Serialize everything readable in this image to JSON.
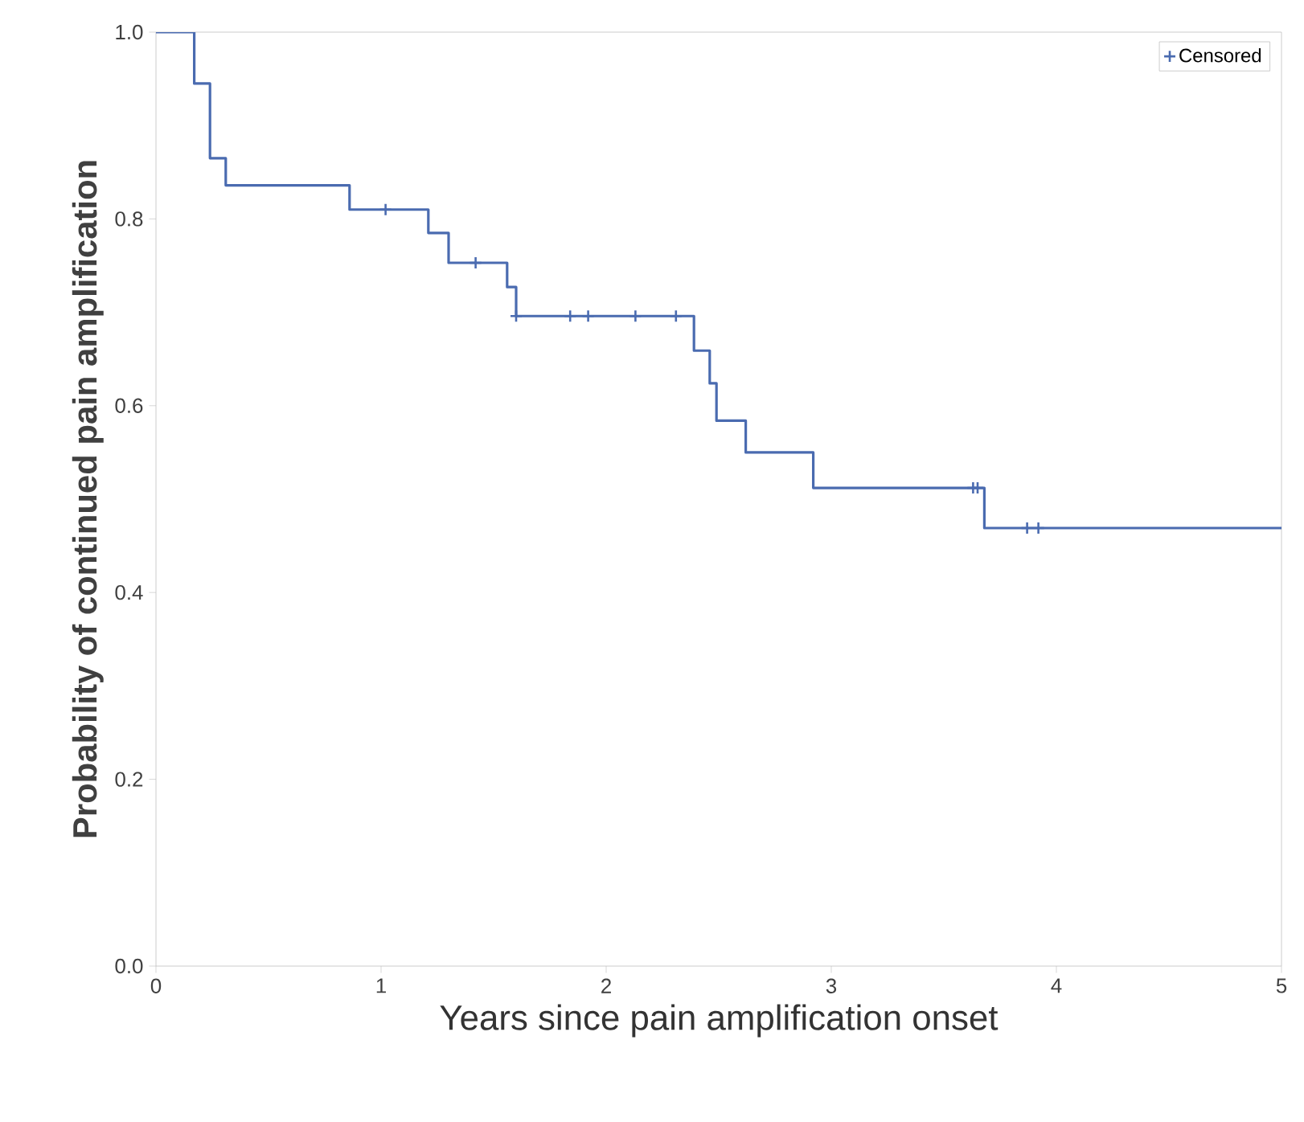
{
  "chart_data": {
    "type": "step",
    "xlabel": "Years since pain amplification onset",
    "ylabel": "Probability of continued pain amplification",
    "xlim": [
      0,
      5
    ],
    "ylim": [
      0,
      1
    ],
    "xticks": [
      0,
      1,
      2,
      3,
      4,
      5
    ],
    "yticks": [
      {
        "value": 0,
        "label": "0.0"
      },
      {
        "value": 0.2,
        "label": "0.2"
      },
      {
        "value": 0.4,
        "label": "0.4"
      },
      {
        "value": 0.6,
        "label": "0.6"
      },
      {
        "value": 0.8,
        "label": "0.8"
      },
      {
        "value": 1,
        "label": "1.0"
      }
    ],
    "grid": false,
    "legend": "top right",
    "series": [
      {
        "color": "#4a6bb0",
        "x": [
          0,
          0.17,
          0.24,
          0.31,
          0.86,
          1.21,
          1.3,
          1.56,
          1.6,
          2.39,
          2.46,
          2.49,
          2.62,
          2.92,
          3.68,
          5
        ],
        "values": [
          1,
          0.945,
          0.865,
          0.836,
          0.81,
          0.785,
          0.753,
          0.727,
          0.696,
          0.659,
          0.624,
          0.584,
          0.55,
          0.512,
          0.469,
          0.469
        ]
      },
      {
        "type": "scatter",
        "name": "Censored",
        "marker": "cross",
        "color": "#4a6bb0",
        "x": [
          1.02,
          1.42,
          1.6,
          1.84,
          1.92,
          2.13,
          2.31,
          3.63,
          3.65,
          3.87,
          3.92
        ],
        "values": [
          0.81,
          0.753,
          0.696,
          0.696,
          0.696,
          0.696,
          0.696,
          0.512,
          0.512,
          0.469,
          0.469
        ]
      }
    ]
  }
}
